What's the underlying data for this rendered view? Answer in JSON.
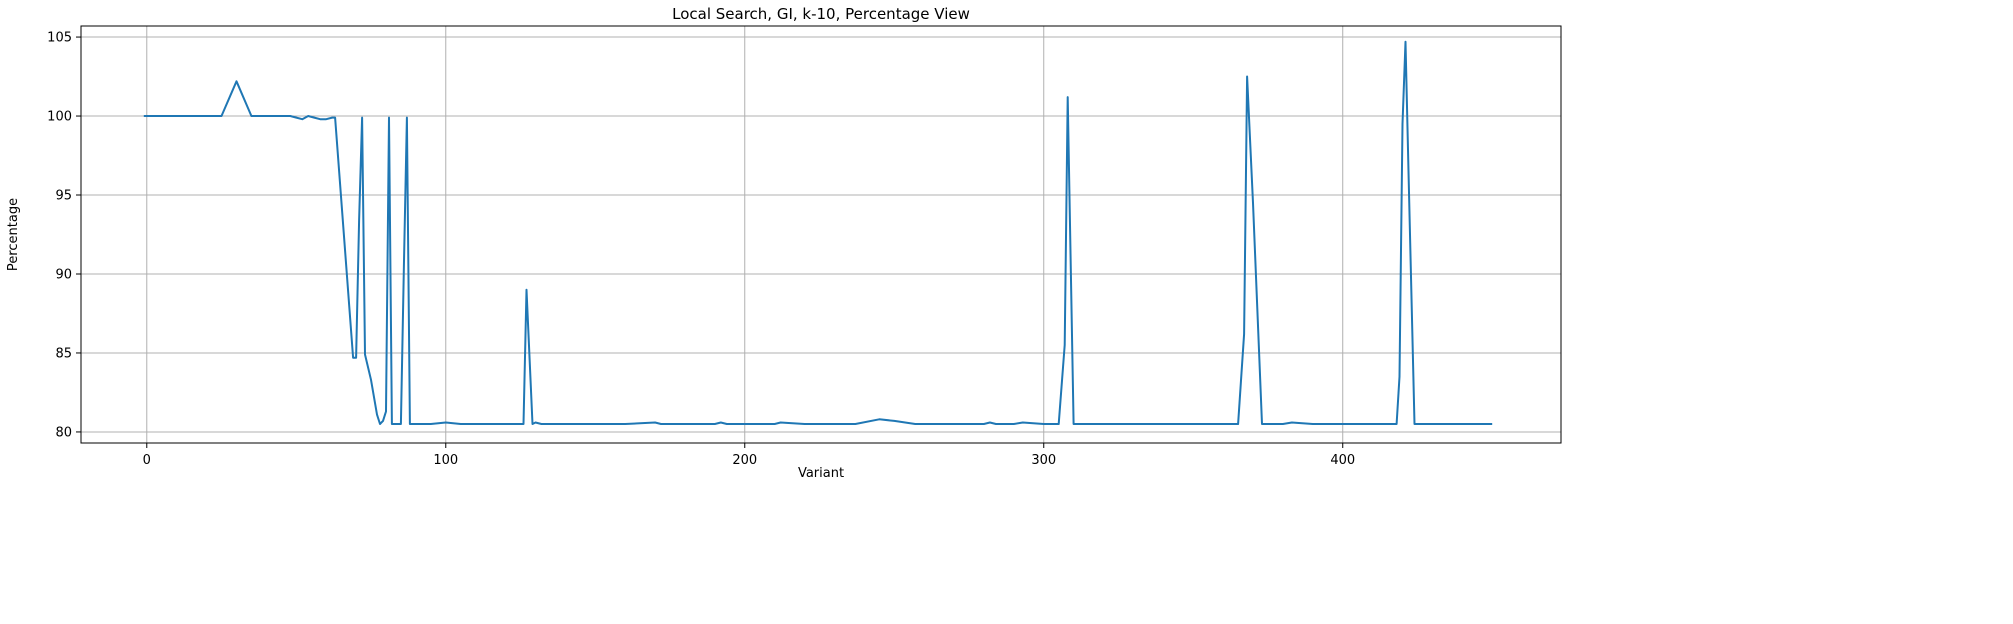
{
  "chart_data": {
    "type": "line",
    "title": "Local Search, GI, k-10, Percentage View",
    "xlabel": "Variant",
    "ylabel": "Percentage",
    "xlim": [
      -22,
      473
    ],
    "ylim": [
      79.3,
      105.7
    ],
    "xticks": [
      0,
      100,
      200,
      300,
      400
    ],
    "yticks": [
      80,
      85,
      90,
      95,
      100,
      105
    ],
    "grid": true,
    "line_color": "#1f77b4",
    "series": [
      {
        "x": [
          -1,
          5,
          10,
          15,
          20,
          25,
          30,
          35,
          40,
          45,
          48,
          50,
          52,
          54,
          56,
          58,
          60,
          62,
          63,
          69,
          70,
          71,
          72,
          73,
          75,
          77,
          78,
          79,
          80,
          81,
          82,
          84,
          85,
          86,
          87,
          88,
          90,
          95,
          100,
          105,
          110,
          115,
          120,
          126,
          127,
          129,
          130,
          132,
          135,
          140,
          150,
          160,
          170,
          172,
          180,
          190,
          192,
          194,
          200,
          205,
          210,
          212,
          220,
          230,
          237,
          245,
          250,
          257,
          260,
          265,
          270,
          276,
          278,
          280,
          282,
          284,
          290,
          293,
          300,
          305,
          307,
          308,
          310,
          320,
          330,
          340,
          350,
          352,
          360,
          365,
          367,
          368,
          370,
          373,
          380,
          383,
          390,
          400,
          410,
          418,
          419,
          420,
          421,
          422,
          424,
          430,
          440,
          447,
          450
        ],
        "y": [
          100,
          100,
          100,
          100,
          100,
          100,
          102.2,
          100,
          100,
          100,
          100,
          99.9,
          99.8,
          100,
          99.9,
          99.8,
          99.8,
          99.9,
          99.9,
          84.7,
          84.7,
          93.4,
          99.9,
          84.9,
          83.3,
          81.1,
          80.5,
          80.7,
          81.3,
          99.9,
          80.5,
          80.5,
          80.5,
          90.5,
          99.9,
          80.5,
          80.5,
          80.5,
          80.6,
          80.5,
          80.5,
          80.5,
          80.5,
          80.5,
          89,
          80.5,
          80.6,
          80.5,
          80.5,
          80.5,
          80.5,
          80.5,
          80.6,
          80.5,
          80.5,
          80.5,
          80.6,
          80.5,
          80.5,
          80.5,
          80.5,
          80.6,
          80.5,
          80.5,
          80.5,
          80.8,
          80.7,
          80.5,
          80.5,
          80.5,
          80.5,
          80.5,
          80.5,
          80.5,
          80.6,
          80.5,
          80.5,
          80.6,
          80.5,
          80.5,
          85.5,
          101.2,
          80.5,
          80.5,
          80.5,
          80.5,
          80.5,
          80.5,
          80.5,
          80.5,
          86.2,
          102.5,
          94.5,
          80.5,
          80.5,
          80.6,
          80.5,
          80.5,
          80.5,
          80.5,
          83.5,
          99.5,
          104.7,
          96.5,
          80.5,
          80.5,
          80.5,
          80.5,
          80.5
        ]
      }
    ]
  }
}
